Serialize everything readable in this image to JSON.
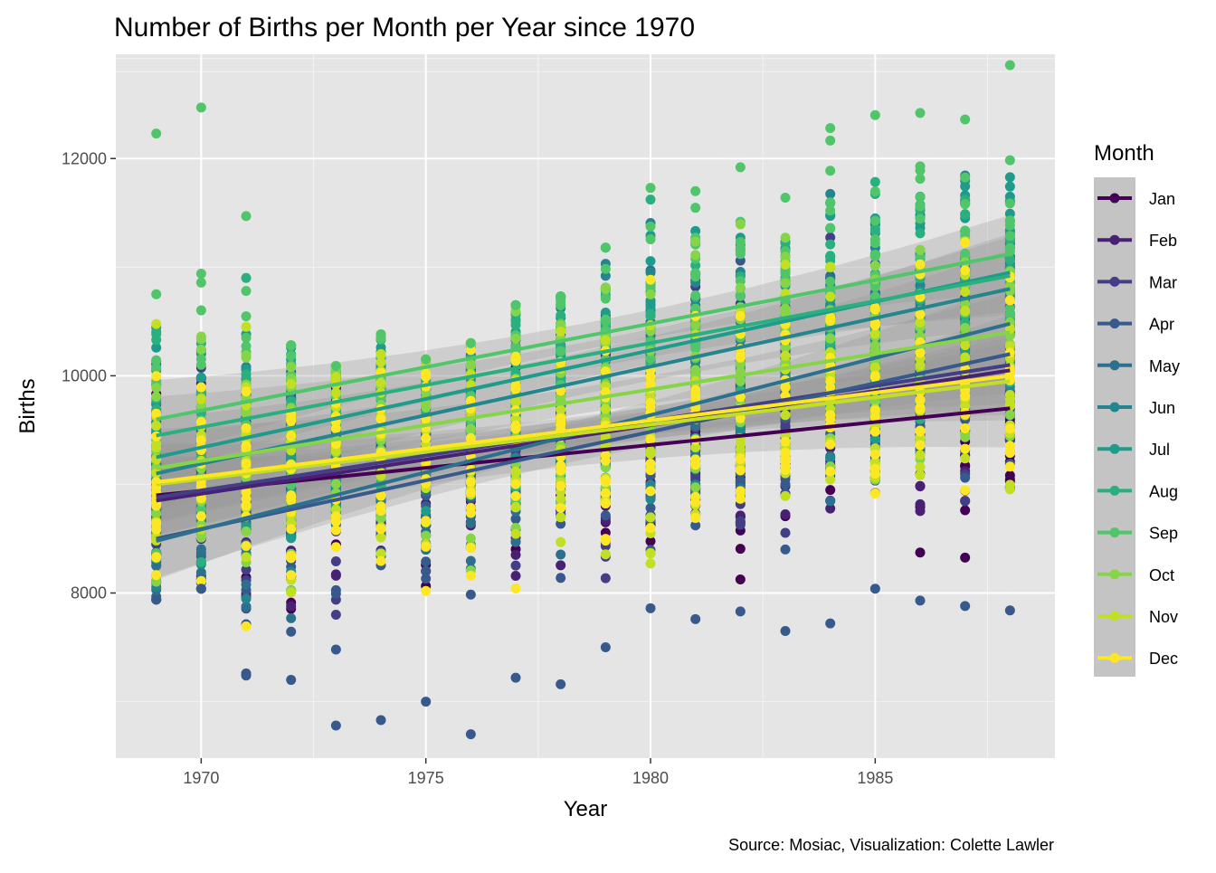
{
  "chart_data": {
    "type": "scatter",
    "title": "Number of Births per Month per Year since 1970",
    "xlabel": "Year",
    "ylabel": "Births",
    "caption": "Source: Mosiac, Visualization: Colette Lawler",
    "xlim": [
      1968.1,
      1989.0
    ],
    "ylim": [
      6480,
      12960
    ],
    "x_ticks": [
      1970,
      1975,
      1980,
      1985
    ],
    "y_ticks": [
      8000,
      10000,
      12000
    ],
    "grid": true,
    "background": "#e5e5e5",
    "legend": {
      "title": "Month",
      "position": "right",
      "labels": [
        "Jan",
        "Feb",
        "Mar",
        "Apr",
        "May",
        "Jun",
        "Jul",
        "Aug",
        "Sep",
        "Oct",
        "Nov",
        "Dec"
      ]
    },
    "colors": [
      "#440154",
      "#482173",
      "#433e85",
      "#38598c",
      "#2d708e",
      "#25858e",
      "#1e9b8a",
      "#2ab07f",
      "#51c56a",
      "#86d549",
      "#c2df23",
      "#fde725"
    ],
    "years": [
      1969,
      1970,
      1971,
      1972,
      1973,
      1974,
      1975,
      1976,
      1977,
      1978,
      1979,
      1980,
      1981,
      1982,
      1983,
      1984,
      1985,
      1986,
      1987,
      1988
    ],
    "daily_range_by_year": {
      "min": [
        7940,
        8040,
        7240,
        7200,
        6780,
        6830,
        7000,
        6700,
        7220,
        7160,
        7500,
        7860,
        7760,
        7830,
        7650,
        7720,
        8040,
        7930,
        7880,
        7840
      ],
      "max": [
        12230,
        12470,
        11470,
        10280,
        10090,
        10380,
        10150,
        10300,
        10650,
        10730,
        11180,
        11730,
        11700,
        11920,
        11640,
        12280,
        12400,
        12420,
        12360,
        12860
      ]
    },
    "series": [
      {
        "name": "Jan",
        "trend": [
          [
            1969,
            8900
          ],
          [
            1988,
            9700
          ]
        ]
      },
      {
        "name": "Feb",
        "trend": [
          [
            1969,
            8850
          ],
          [
            1988,
            10050
          ]
        ]
      },
      {
        "name": "Mar",
        "trend": [
          [
            1969,
            8880
          ],
          [
            1988,
            10100
          ]
        ]
      },
      {
        "name": "Apr",
        "trend": [
          [
            1969,
            8500
          ],
          [
            1988,
            10200
          ]
        ]
      },
      {
        "name": "May",
        "trend": [
          [
            1969,
            8480
          ],
          [
            1988,
            10480
          ]
        ]
      },
      {
        "name": "Jun",
        "trend": [
          [
            1969,
            9100
          ],
          [
            1988,
            10800
          ]
        ]
      },
      {
        "name": "Jul",
        "trend": [
          [
            1969,
            9250
          ],
          [
            1988,
            10950
          ]
        ]
      },
      {
        "name": "Aug",
        "trend": [
          [
            1969,
            9450
          ],
          [
            1988,
            10920
          ]
        ]
      },
      {
        "name": "Sep",
        "trend": [
          [
            1969,
            9600
          ],
          [
            1988,
            11120
          ]
        ]
      },
      {
        "name": "Oct",
        "trend": [
          [
            1969,
            9150
          ],
          [
            1988,
            10400
          ]
        ]
      },
      {
        "name": "Nov",
        "trend": [
          [
            1969,
            9000
          ],
          [
            1988,
            9950
          ]
        ]
      },
      {
        "name": "Dec",
        "trend": [
          [
            1969,
            9020
          ],
          [
            1988,
            10000
          ]
        ]
      }
    ]
  }
}
